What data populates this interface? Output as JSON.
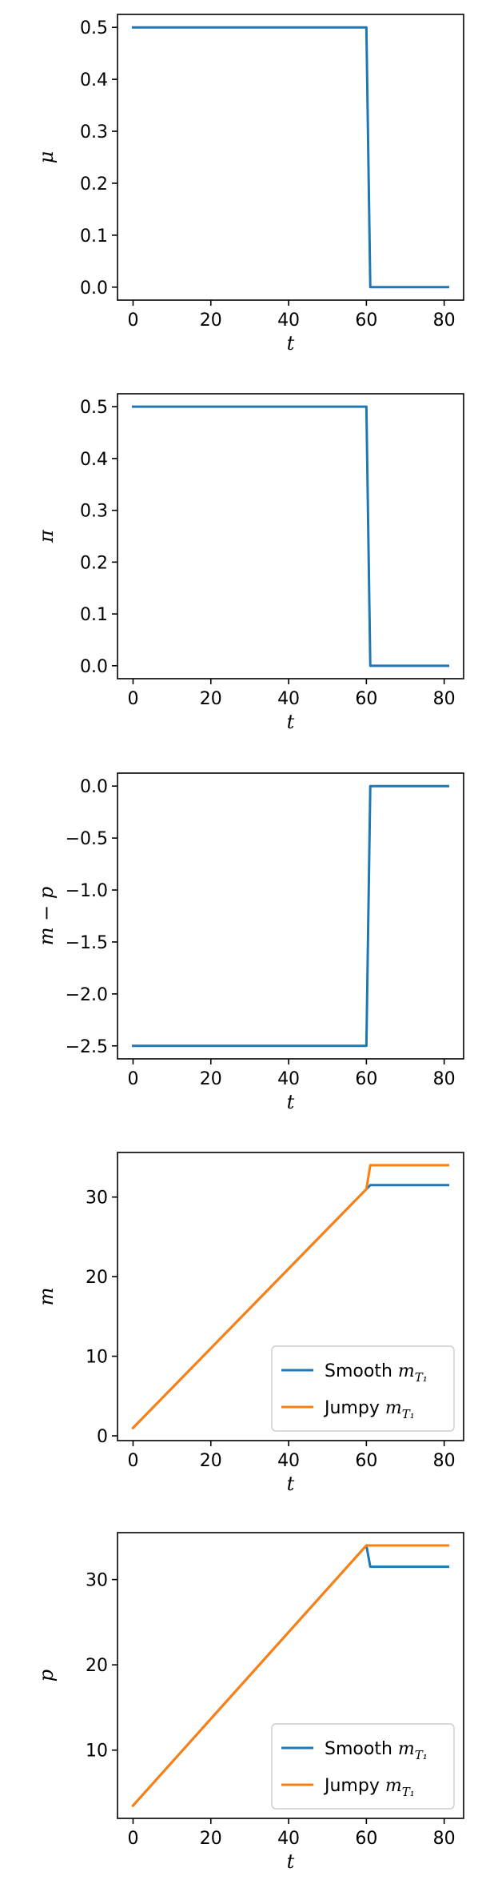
{
  "colors": {
    "blue": "#1f77b4",
    "orange": "#ff7f0e",
    "axes": "#000000",
    "legend_border": "#cccccc"
  },
  "chart_data": [
    {
      "type": "line",
      "xlabel": "t",
      "ylabel": "μ",
      "xlim": [
        -4,
        85
      ],
      "ylim": [
        -0.025,
        0.525
      ],
      "xticks": [
        0,
        20,
        40,
        60,
        80
      ],
      "yticks": [
        0.0,
        0.1,
        0.2,
        0.3,
        0.4,
        0.5
      ],
      "ytick_labels": [
        "0.0",
        "0.1",
        "0.2",
        "0.3",
        "0.4",
        "0.5"
      ],
      "legend": null,
      "series": [
        {
          "color": "blue",
          "x": [
            0,
            60,
            61,
            81
          ],
          "y": [
            0.5,
            0.5,
            0.0,
            0.0
          ]
        }
      ]
    },
    {
      "type": "line",
      "xlabel": "t",
      "ylabel": "π",
      "xlim": [
        -4,
        85
      ],
      "ylim": [
        -0.025,
        0.525
      ],
      "xticks": [
        0,
        20,
        40,
        60,
        80
      ],
      "yticks": [
        0.0,
        0.1,
        0.2,
        0.3,
        0.4,
        0.5
      ],
      "ytick_labels": [
        "0.0",
        "0.1",
        "0.2",
        "0.3",
        "0.4",
        "0.5"
      ],
      "legend": null,
      "series": [
        {
          "color": "blue",
          "x": [
            0,
            60,
            61,
            81
          ],
          "y": [
            0.5,
            0.5,
            0.0,
            0.0
          ]
        }
      ]
    },
    {
      "type": "line",
      "xlabel": "t",
      "ylabel": "m − p",
      "xlim": [
        -4,
        85
      ],
      "ylim": [
        -2.625,
        0.125
      ],
      "xticks": [
        0,
        20,
        40,
        60,
        80
      ],
      "yticks": [
        0.0,
        -0.5,
        -1.0,
        -1.5,
        -2.0,
        -2.5
      ],
      "ytick_labels": [
        "0.0",
        "−0.5",
        "−1.0",
        "−1.5",
        "−2.0",
        "−2.5"
      ],
      "legend": null,
      "series": [
        {
          "color": "blue",
          "x": [
            0,
            60,
            61,
            81
          ],
          "y": [
            -2.5,
            -2.5,
            0.0,
            0.0
          ]
        }
      ]
    },
    {
      "type": "line",
      "xlabel": "t",
      "ylabel": "m",
      "xlim": [
        -4,
        85
      ],
      "ylim": [
        -0.6,
        35.6
      ],
      "xticks": [
        0,
        20,
        40,
        60,
        80
      ],
      "yticks": [
        0,
        10,
        20,
        30
      ],
      "ytick_labels": [
        "0",
        "10",
        "20",
        "30"
      ],
      "legend": {
        "position": "lower right",
        "entries": [
          {
            "label": "Smooth m",
            "sub": "T₁",
            "color": "blue"
          },
          {
            "label": "Jumpy m",
            "sub": "T₁",
            "color": "orange"
          }
        ]
      },
      "series": [
        {
          "name": "Smooth m_T1",
          "color": "blue",
          "x": [
            0,
            60,
            61,
            81
          ],
          "y": [
            1.0,
            31.0,
            31.5,
            31.5
          ]
        },
        {
          "name": "Jumpy m_T1",
          "color": "orange",
          "x": [
            0,
            60,
            61,
            81
          ],
          "y": [
            1.0,
            31.0,
            34.0,
            34.0
          ]
        }
      ]
    },
    {
      "type": "line",
      "xlabel": "t",
      "ylabel": "p",
      "xlim": [
        -4,
        85
      ],
      "ylim": [
        2.0,
        35.5
      ],
      "xticks": [
        0,
        20,
        40,
        60,
        80
      ],
      "yticks": [
        10,
        20,
        30
      ],
      "ytick_labels": [
        "10",
        "20",
        "30"
      ],
      "legend": {
        "position": "lower right",
        "entries": [
          {
            "label": "Smooth m",
            "sub": "T₁",
            "color": "blue"
          },
          {
            "label": "Jumpy m",
            "sub": "T₁",
            "color": "orange"
          }
        ]
      },
      "series": [
        {
          "name": "Smooth m_T1",
          "color": "blue",
          "x": [
            0,
            60,
            61,
            81
          ],
          "y": [
            3.5,
            34.0,
            31.5,
            31.5
          ]
        },
        {
          "name": "Jumpy m_T1",
          "color": "orange",
          "x": [
            0,
            60,
            61,
            81
          ],
          "y": [
            3.5,
            34.0,
            34.0,
            34.0
          ]
        }
      ]
    }
  ]
}
